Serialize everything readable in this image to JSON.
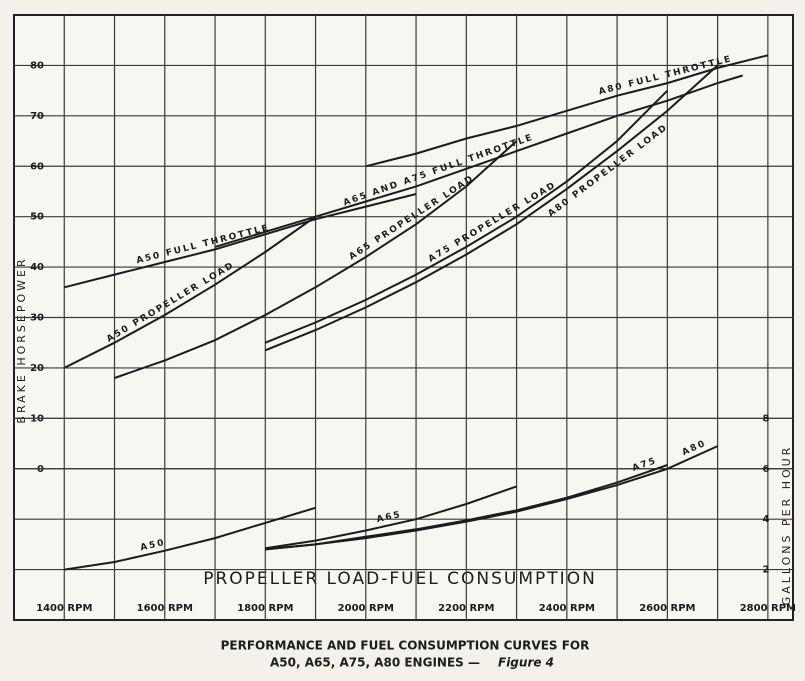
{
  "chart_data": {
    "type": "line",
    "title": "PERFORMANCE AND FUEL CONSUMPTION CURVES FOR",
    "subtitle": "A50, A65, A75, A80 ENGINES —",
    "figure_label": "Figure 4",
    "ylabel": "BRAKE HORSEPOWER",
    "y2label": "GALLONS PER HOUR",
    "annotation": "PROPELLER LOAD-FUEL CONSUMPTION",
    "xlim": [
      1300,
      2850
    ],
    "xticks": [
      {
        "value": 1400,
        "label": "1400 RPM"
      },
      {
        "value": 1600,
        "label": "1600 RPM"
      },
      {
        "value": 1800,
        "label": "1800 RPM"
      },
      {
        "value": 2000,
        "label": "2000 RPM"
      },
      {
        "value": 2200,
        "label": "2200 RPM"
      },
      {
        "value": 2400,
        "label": "2400 RPM"
      },
      {
        "value": 2600,
        "label": "2600 RPM"
      },
      {
        "value": 2800,
        "label": "2800 RPM"
      }
    ],
    "xminorticks": [
      1500,
      1700,
      1900,
      2100,
      2300,
      2500,
      2700
    ],
    "ylim": [
      -30,
      90
    ],
    "yticks": [
      0,
      10,
      20,
      30,
      40,
      50,
      60,
      70,
      80
    ],
    "y2lim": [
      0,
      24
    ],
    "y2ticks": [
      2,
      4,
      6,
      8
    ],
    "grid": true,
    "series": [
      {
        "name": "A50 FULL THROTTLE",
        "color": "#1c1c1c",
        "x": [
          1400,
          1500,
          1600,
          1700,
          1800,
          1900,
          2000,
          2100
        ],
        "values": [
          36,
          38.5,
          41,
          43.5,
          46.5,
          49.5,
          52,
          54.5
        ]
      },
      {
        "name": "A65 AND A75 FULL THROTTLE",
        "color": "#1c1c1c",
        "x": [
          1700,
          1800,
          1900,
          2000,
          2100,
          2200,
          2300,
          2400,
          2500,
          2600,
          2700,
          2750
        ],
        "values": [
          44,
          47,
          50,
          53,
          56,
          59.5,
          63,
          66.5,
          70,
          73,
          76.5,
          78
        ]
      },
      {
        "name": "A80 FULL THROTTLE",
        "color": "#1c1c1c",
        "x": [
          2000,
          2100,
          2200,
          2300,
          2400,
          2500,
          2600,
          2700,
          2800
        ],
        "values": [
          60,
          62.5,
          65.5,
          68,
          71,
          74,
          76.5,
          79.5,
          82
        ]
      },
      {
        "name": "A50 PROPELLER LOAD",
        "color": "#1c1c1c",
        "x": [
          1400,
          1500,
          1600,
          1700,
          1800,
          1900
        ],
        "values": [
          20,
          25,
          30.5,
          36.5,
          43,
          50
        ]
      },
      {
        "name": "A65 PROPELLER LOAD",
        "color": "#1c1c1c",
        "x": [
          1500,
          1600,
          1700,
          1800,
          1900,
          2000,
          2100,
          2200,
          2300
        ],
        "values": [
          18,
          21.5,
          25.5,
          30.5,
          36,
          42,
          48.5,
          56,
          65
        ]
      },
      {
        "name": "A75 PROPELLER LOAD",
        "color": "#1c1c1c",
        "x": [
          1800,
          1900,
          2000,
          2100,
          2200,
          2300,
          2400,
          2500,
          2600
        ],
        "values": [
          25,
          29,
          33.5,
          38.5,
          44,
          50,
          57,
          65,
          75
        ]
      },
      {
        "name": "A80 PROPELLER LOAD",
        "color": "#1c1c1c",
        "x": [
          1800,
          1900,
          2000,
          2100,
          2200,
          2300,
          2400,
          2500,
          2600,
          2700
        ],
        "values": [
          23.5,
          27.5,
          32,
          37,
          42.5,
          48.5,
          55.5,
          63,
          71,
          80
        ]
      },
      {
        "name": "A50",
        "color": "#1c1c1c",
        "axis": "y2",
        "x": [
          1400,
          1500,
          1600,
          1700,
          1800,
          1900
        ],
        "values": [
          2.0,
          2.3,
          2.75,
          3.25,
          3.85,
          4.45
        ]
      },
      {
        "name": "A65",
        "color": "#1c1c1c",
        "axis": "y2",
        "x": [
          1800,
          1900,
          2000,
          2100,
          2200,
          2300
        ],
        "values": [
          2.85,
          3.15,
          3.55,
          4.0,
          4.6,
          5.3
        ]
      },
      {
        "name": "A75",
        "color": "#1c1c1c",
        "axis": "y2",
        "x": [
          1800,
          1900,
          2000,
          2100,
          2200,
          2300,
          2400,
          2500,
          2600
        ],
        "values": [
          2.8,
          3.0,
          3.3,
          3.6,
          3.95,
          4.35,
          4.85,
          5.45,
          6.15
        ]
      },
      {
        "name": "A80",
        "color": "#1c1c1c",
        "axis": "y2",
        "x": [
          1800,
          1900,
          2000,
          2100,
          2200,
          2300,
          2400,
          2500,
          2600,
          2700
        ],
        "values": [
          2.8,
          3.0,
          3.25,
          3.55,
          3.9,
          4.3,
          4.8,
          5.35,
          6.0,
          6.9
        ]
      }
    ]
  }
}
